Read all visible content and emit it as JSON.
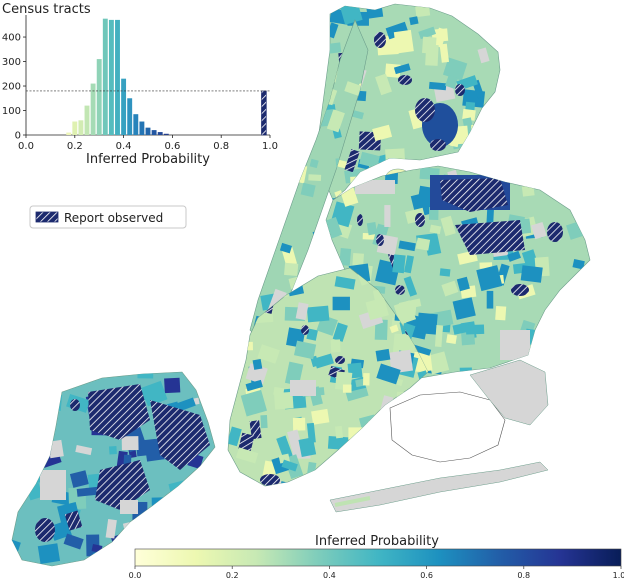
{
  "histogram": {
    "title": "Census tracts",
    "xlabel": "Inferred Probability",
    "y_ticks": [
      "0",
      "100",
      "200",
      "300",
      "400"
    ],
    "x_ticks": [
      "0.0",
      "0.2",
      "0.4",
      "0.6",
      "0.8",
      "1.0"
    ]
  },
  "chart_data": {
    "type": "bar",
    "title": "Census tracts",
    "xlabel": "Inferred Probability",
    "ylabel": "",
    "xlim": [
      0,
      1
    ],
    "ylim": [
      0,
      490
    ],
    "bin_width": 0.025,
    "bins": [
      {
        "x": 0.175,
        "count": 10,
        "color": "#eef6b8"
      },
      {
        "x": 0.2,
        "count": 55,
        "color": "#dff1b1"
      },
      {
        "x": 0.225,
        "count": 60,
        "color": "#d2ecb3"
      },
      {
        "x": 0.25,
        "count": 120,
        "color": "#c2e6b3"
      },
      {
        "x": 0.275,
        "count": 210,
        "color": "#a5dbb5"
      },
      {
        "x": 0.3,
        "count": 310,
        "color": "#8fd3b7"
      },
      {
        "x": 0.325,
        "count": 475,
        "color": "#6fc7ba"
      },
      {
        "x": 0.35,
        "count": 470,
        "color": "#55bcbe"
      },
      {
        "x": 0.375,
        "count": 470,
        "color": "#43b0c0"
      },
      {
        "x": 0.4,
        "count": 230,
        "color": "#37a1c1"
      },
      {
        "x": 0.425,
        "count": 150,
        "color": "#2f93bf"
      },
      {
        "x": 0.45,
        "count": 85,
        "color": "#2783bb"
      },
      {
        "x": 0.475,
        "count": 55,
        "color": "#2374b4"
      },
      {
        "x": 0.5,
        "count": 30,
        "color": "#2266ab"
      },
      {
        "x": 0.525,
        "count": 20,
        "color": "#2357a2"
      },
      {
        "x": 0.55,
        "count": 12,
        "color": "#254a98"
      },
      {
        "x": 0.575,
        "count": 5,
        "color": "#243e8c"
      },
      {
        "x": 0.975,
        "count": 180,
        "color": "#1c2a6e",
        "hatched": true
      }
    ],
    "reference_line": {
      "y": 180,
      "style": "dashed"
    }
  },
  "legend": {
    "label": "Report observed"
  },
  "colorbar": {
    "title": "Inferred Probability",
    "ticks": [
      "0.0",
      "0.2",
      "0.4",
      "0.6",
      "0.8",
      "1.0"
    ],
    "colors": [
      "#ffffd9",
      "#edf8b1",
      "#c7e9b4",
      "#7fcdbb",
      "#41b6c4",
      "#1d91c0",
      "#225ea8",
      "#253494",
      "#081d58"
    ]
  },
  "map": {
    "land_color": "#d6d6d6",
    "base_color": "#a8dab5",
    "hatch_color": "#1c2a6e"
  }
}
